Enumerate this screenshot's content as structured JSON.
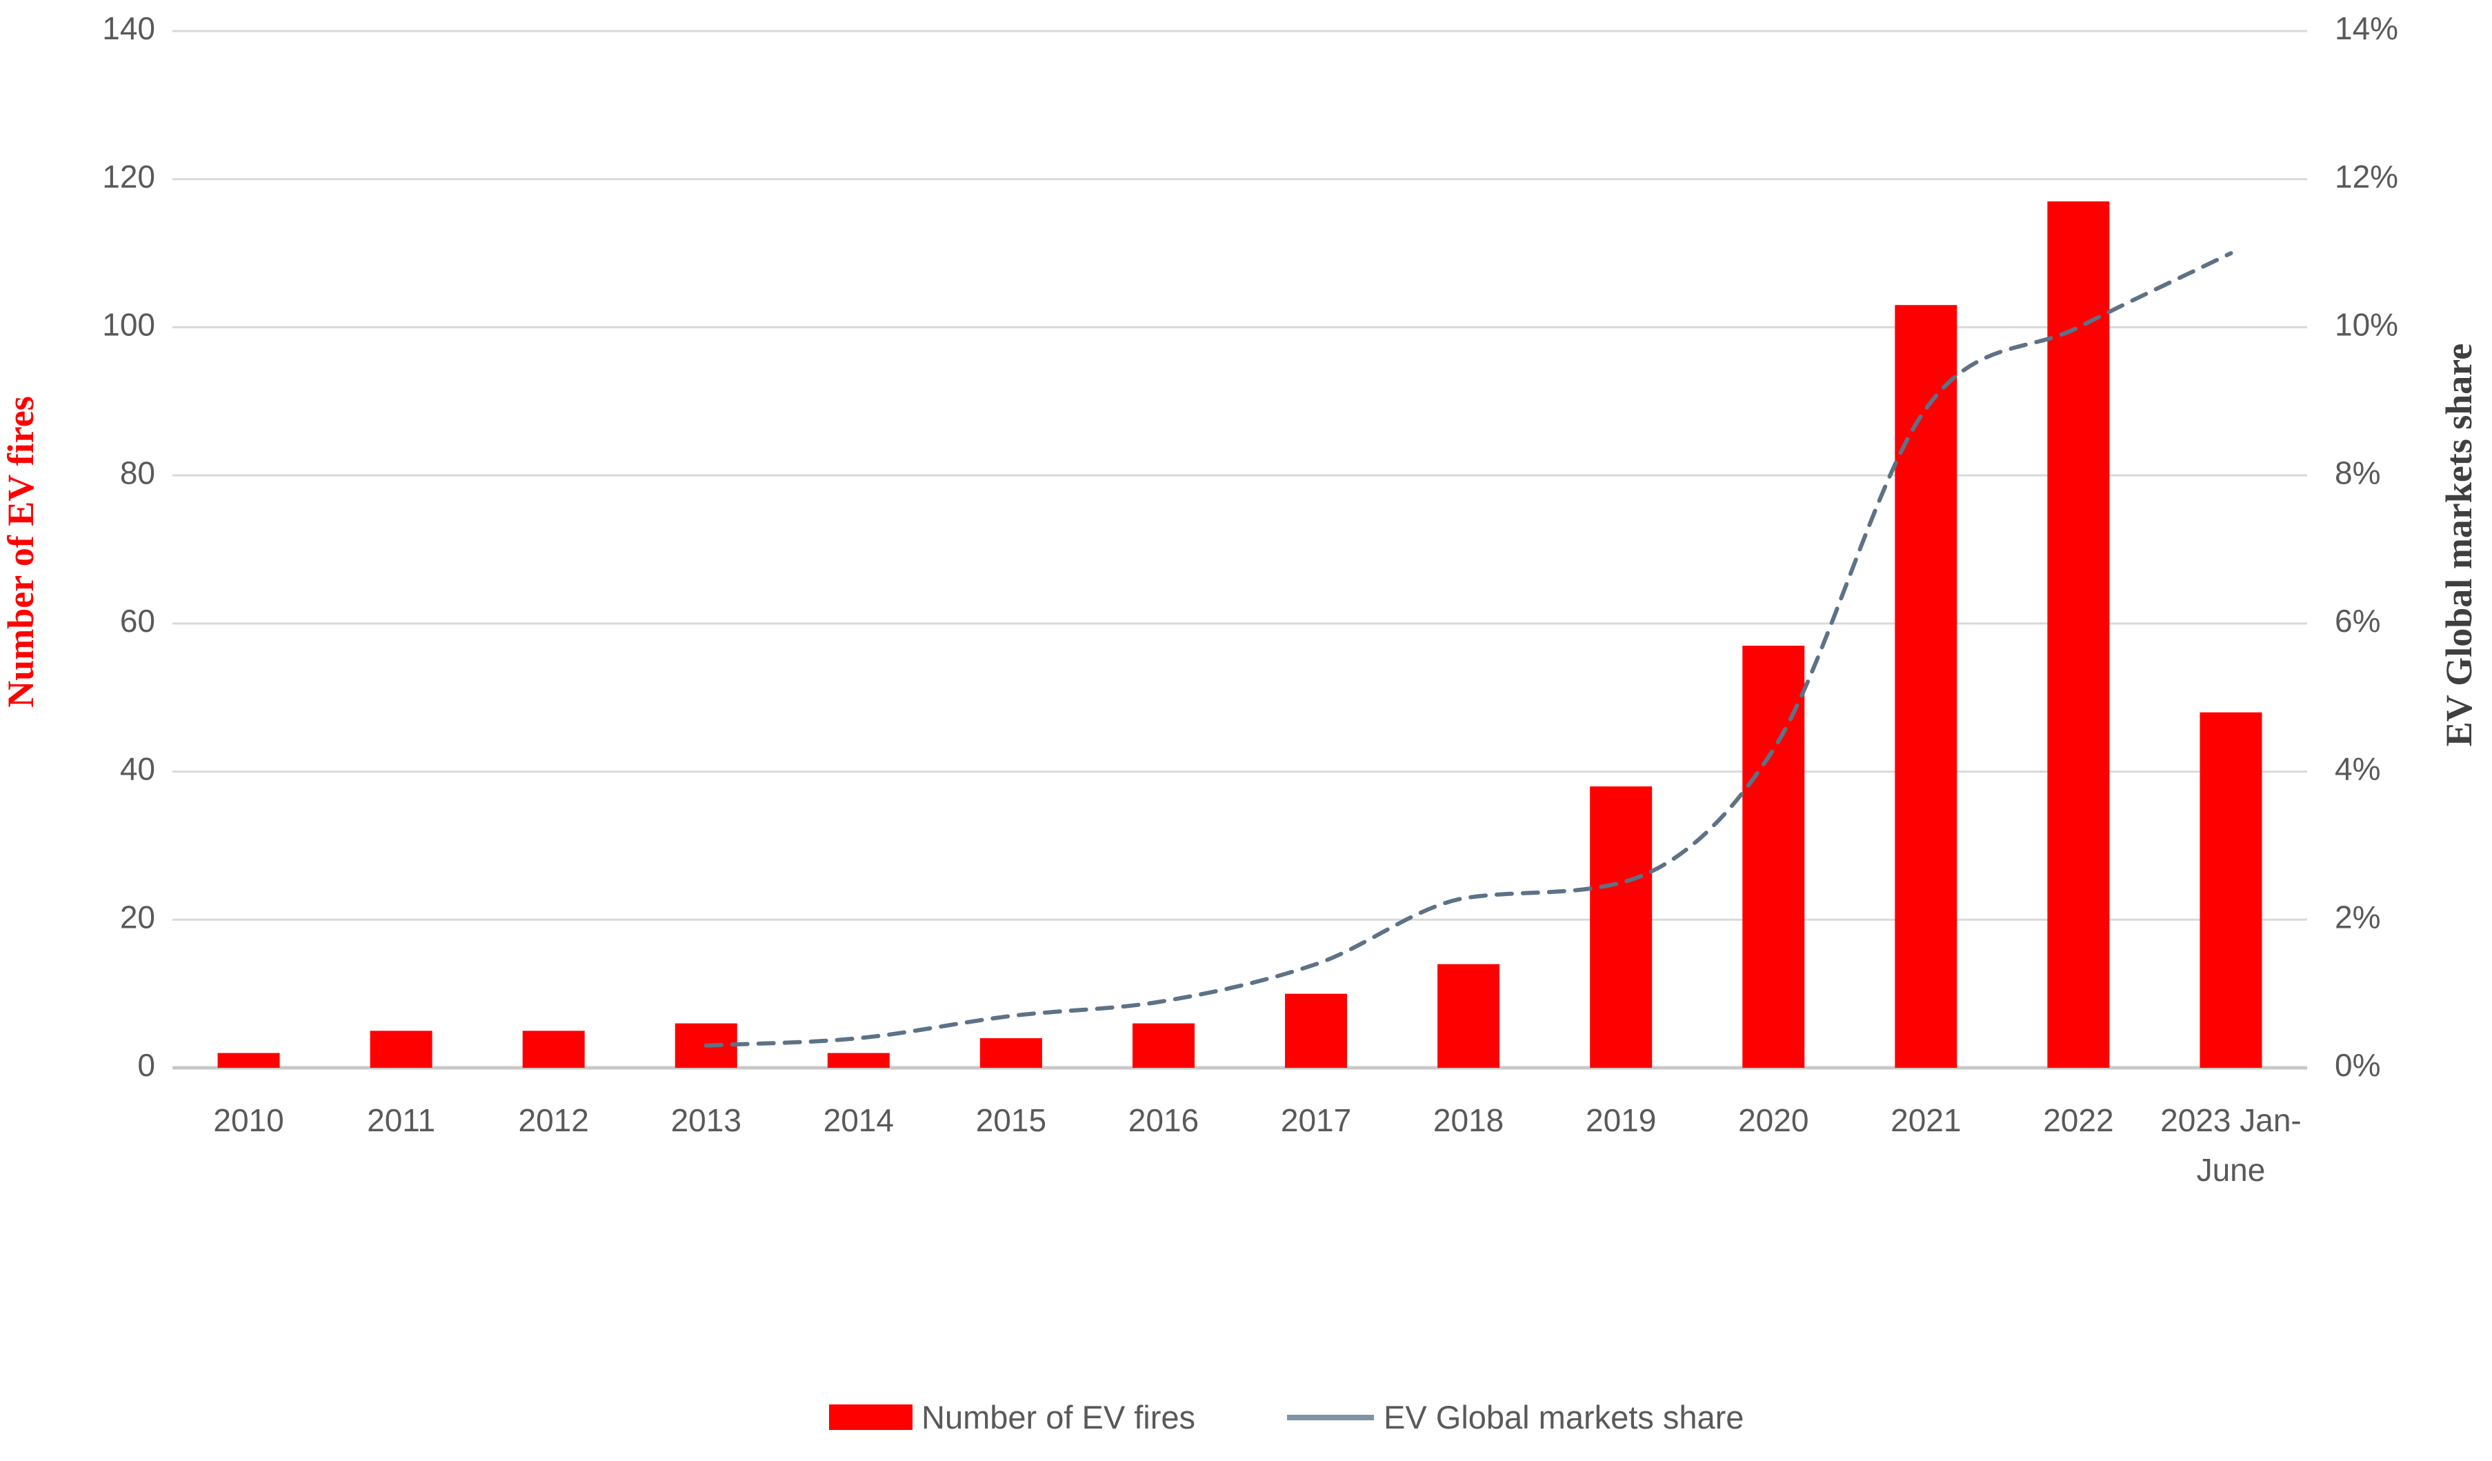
{
  "page": {
    "background": "#ffffff"
  },
  "chart_data": {
    "type": "bar",
    "subtype": "bar-line-combo",
    "categories": [
      "2010",
      "2011",
      "2012",
      "2013",
      "2014",
      "2015",
      "2016",
      "2017",
      "2018",
      "2019",
      "2020",
      "2021",
      "2022",
      "2023 Jan-\nJune"
    ],
    "series": [
      {
        "name": "Number of EV fires",
        "type": "bar",
        "axis": "left",
        "color": "#ff0000",
        "values": [
          2,
          5,
          5,
          6,
          2,
          4,
          6,
          10,
          14,
          38,
          57,
          103,
          117,
          48
        ]
      },
      {
        "name": "EV Global markets share",
        "type": "line",
        "axis": "right",
        "color": "#5d7287",
        "line_style": "dashed",
        "values_percent": [
          null,
          null,
          null,
          0.3,
          0.4,
          0.7,
          0.9,
          1.4,
          2.3,
          2.5,
          4.3,
          8.9,
          10,
          11
        ]
      }
    ],
    "left_axis": {
      "title": "Number of EV fires",
      "title_color": "#ff0000",
      "min": 0,
      "max": 140,
      "tick_step": 20,
      "tick_labels": [
        "0",
        "20",
        "40",
        "60",
        "80",
        "100",
        "120",
        "140"
      ]
    },
    "right_axis": {
      "title": "EV Global markets share",
      "title_color": "#3f3f3f",
      "min": 0,
      "max": 14,
      "tick_step": 2,
      "tick_labels": [
        "0%",
        "2%",
        "4%",
        "6%",
        "8%",
        "10%",
        "12%",
        "14%"
      ]
    },
    "grid": {
      "horizontal": true,
      "color": "#d9d9d9",
      "baseline_color": "#c8c8c8"
    },
    "tick_label_color": "#595959",
    "legend": {
      "position": "bottom-center",
      "items": [
        {
          "label": "Number of EV fires",
          "swatch": "bar",
          "color": "#ff0000"
        },
        {
          "label": "EV Global markets share",
          "swatch": "line",
          "color": "#7e93a6"
        }
      ]
    }
  }
}
